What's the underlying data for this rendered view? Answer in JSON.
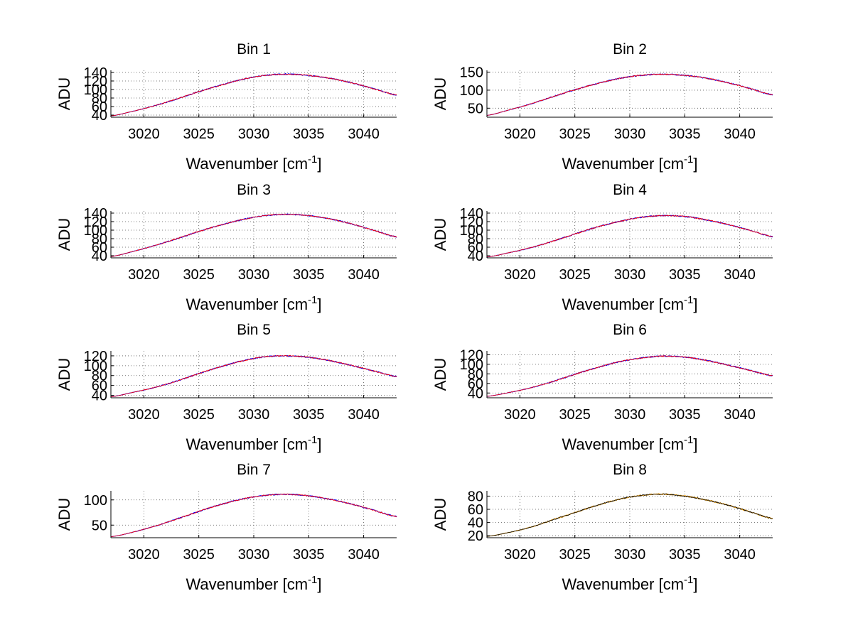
{
  "chart_data": [
    {
      "type": "line",
      "title": "Bin 1",
      "xlabel": "Wavenumber [cm",
      "xlabel_sup": "-1",
      "xlabel_end": "]",
      "ylabel": "ADU",
      "xlim": [
        3017,
        3043
      ],
      "ylim": [
        35,
        145
      ],
      "xticks": [
        3020,
        3025,
        3030,
        3035,
        3040
      ],
      "yticks": [
        40,
        60,
        80,
        100,
        120,
        140
      ],
      "grid": true,
      "series": [
        {
          "color": "#0000ff",
          "x": [
            3017,
            3019,
            3021,
            3023,
            3025,
            3027,
            3029,
            3031,
            3033,
            3035,
            3037,
            3039,
            3041,
            3043
          ],
          "values": [
            38,
            49,
            62,
            78,
            95,
            110,
            124,
            133,
            136,
            133,
            126,
            115,
            101,
            87
          ]
        },
        {
          "color": "#ff0000",
          "x": [
            3017,
            3019,
            3021,
            3023,
            3025,
            3027,
            3029,
            3031,
            3033,
            3035,
            3037,
            3039,
            3041,
            3043
          ],
          "values": [
            38,
            49,
            62,
            78,
            95,
            110,
            124,
            133,
            136,
            133,
            126,
            115,
            101,
            87
          ]
        }
      ]
    },
    {
      "type": "line",
      "title": "Bin 2",
      "xlabel": "Wavenumber [cm",
      "xlabel_sup": "-1",
      "xlabel_end": "]",
      "ylabel": "ADU",
      "xlim": [
        3017,
        3043
      ],
      "ylim": [
        25,
        155
      ],
      "xticks": [
        3020,
        3025,
        3030,
        3035,
        3040
      ],
      "yticks": [
        50,
        100,
        150
      ],
      "grid": true,
      "series": [
        {
          "color": "#0000ff",
          "x": [
            3017,
            3019,
            3021,
            3023,
            3025,
            3027,
            3029,
            3031,
            3033,
            3035,
            3037,
            3039,
            3041,
            3043
          ],
          "values": [
            30,
            45,
            62,
            82,
            101,
            118,
            132,
            141,
            144,
            141,
            133,
            120,
            104,
            87
          ]
        },
        {
          "color": "#ff0000",
          "x": [
            3017,
            3019,
            3021,
            3023,
            3025,
            3027,
            3029,
            3031,
            3033,
            3035,
            3037,
            3039,
            3041,
            3043
          ],
          "values": [
            30,
            45,
            62,
            82,
            101,
            118,
            132,
            141,
            144,
            141,
            133,
            120,
            104,
            87
          ]
        }
      ]
    },
    {
      "type": "line",
      "title": "Bin 3",
      "xlabel": "Wavenumber [cm",
      "xlabel_sup": "-1",
      "xlabel_end": "]",
      "ylabel": "ADU",
      "xlim": [
        3017,
        3043
      ],
      "ylim": [
        35,
        145
      ],
      "xticks": [
        3020,
        3025,
        3030,
        3035,
        3040
      ],
      "yticks": [
        40,
        60,
        80,
        100,
        120,
        140
      ],
      "grid": true,
      "series": [
        {
          "color": "#0000ff",
          "x": [
            3017,
            3019,
            3021,
            3023,
            3025,
            3027,
            3029,
            3031,
            3033,
            3035,
            3037,
            3039,
            3041,
            3043
          ],
          "values": [
            38,
            50,
            64,
            80,
            97,
            112,
            125,
            134,
            137,
            134,
            126,
            114,
            99,
            84
          ]
        },
        {
          "color": "#ff0000",
          "x": [
            3017,
            3019,
            3021,
            3023,
            3025,
            3027,
            3029,
            3031,
            3033,
            3035,
            3037,
            3039,
            3041,
            3043
          ],
          "values": [
            38,
            50,
            64,
            80,
            97,
            112,
            125,
            134,
            137,
            134,
            126,
            114,
            99,
            84
          ]
        }
      ]
    },
    {
      "type": "line",
      "title": "Bin 4",
      "xlabel": "Wavenumber [cm",
      "xlabel_sup": "-1",
      "xlabel_end": "]",
      "ylabel": "ADU",
      "xlim": [
        3017,
        3043
      ],
      "ylim": [
        35,
        145
      ],
      "xticks": [
        3020,
        3025,
        3030,
        3035,
        3040
      ],
      "yticks": [
        40,
        60,
        80,
        100,
        120,
        140
      ],
      "grid": true,
      "series": [
        {
          "color": "#0000ff",
          "x": [
            3017,
            3019,
            3021,
            3023,
            3025,
            3027,
            3029,
            3031,
            3033,
            3035,
            3037,
            3039,
            3041,
            3043
          ],
          "values": [
            37,
            47,
            59,
            74,
            91,
            107,
            120,
            130,
            134,
            132,
            124,
            113,
            99,
            85
          ]
        },
        {
          "color": "#ff0000",
          "x": [
            3017,
            3019,
            3021,
            3023,
            3025,
            3027,
            3029,
            3031,
            3033,
            3035,
            3037,
            3039,
            3041,
            3043
          ],
          "values": [
            37,
            47,
            59,
            74,
            91,
            107,
            120,
            130,
            134,
            132,
            124,
            113,
            99,
            85
          ]
        }
      ]
    },
    {
      "type": "line",
      "title": "Bin 5",
      "xlabel": "Wavenumber [cm",
      "xlabel_sup": "-1",
      "xlabel_end": "]",
      "ylabel": "ADU",
      "xlim": [
        3017,
        3043
      ],
      "ylim": [
        35,
        130
      ],
      "xticks": [
        3020,
        3025,
        3030,
        3035,
        3040
      ],
      "yticks": [
        40,
        60,
        80,
        100,
        120
      ],
      "grid": true,
      "series": [
        {
          "color": "#0000ff",
          "x": [
            3017,
            3019,
            3021,
            3023,
            3025,
            3027,
            3029,
            3031,
            3033,
            3035,
            3037,
            3039,
            3041,
            3043
          ],
          "values": [
            37,
            46,
            56,
            69,
            84,
            98,
            110,
            118,
            120,
            117,
            110,
            100,
            89,
            78
          ]
        },
        {
          "color": "#ff0000",
          "x": [
            3017,
            3019,
            3021,
            3023,
            3025,
            3027,
            3029,
            3031,
            3033,
            3035,
            3037,
            3039,
            3041,
            3043
          ],
          "values": [
            37,
            46,
            56,
            69,
            84,
            98,
            110,
            118,
            120,
            117,
            110,
            100,
            89,
            78
          ]
        }
      ]
    },
    {
      "type": "line",
      "title": "Bin 6",
      "xlabel": "Wavenumber [cm",
      "xlabel_sup": "-1",
      "xlabel_end": "]",
      "ylabel": "ADU",
      "xlim": [
        3017,
        3043
      ],
      "ylim": [
        30,
        128
      ],
      "xticks": [
        3020,
        3025,
        3030,
        3035,
        3040
      ],
      "yticks": [
        40,
        60,
        80,
        100,
        120
      ],
      "grid": true,
      "series": [
        {
          "color": "#0000ff",
          "x": [
            3017,
            3019,
            3021,
            3023,
            3025,
            3027,
            3029,
            3031,
            3033,
            3035,
            3037,
            3039,
            3041,
            3043
          ],
          "values": [
            33,
            41,
            51,
            64,
            79,
            93,
            105,
            113,
            117,
            115,
            108,
            98,
            87,
            76
          ]
        },
        {
          "color": "#ff0000",
          "x": [
            3017,
            3019,
            3021,
            3023,
            3025,
            3027,
            3029,
            3031,
            3033,
            3035,
            3037,
            3039,
            3041,
            3043
          ],
          "values": [
            33,
            41,
            51,
            64,
            79,
            93,
            105,
            113,
            117,
            115,
            108,
            98,
            87,
            76
          ]
        }
      ]
    },
    {
      "type": "line",
      "title": "Bin 7",
      "xlabel": "Wavenumber [cm",
      "xlabel_sup": "-1",
      "xlabel_end": "]",
      "ylabel": "ADU",
      "xlim": [
        3017,
        3043
      ],
      "ylim": [
        25,
        118
      ],
      "xticks": [
        3020,
        3025,
        3030,
        3035,
        3040
      ],
      "yticks": [
        50,
        100
      ],
      "grid": true,
      "series": [
        {
          "color": "#0000ff",
          "x": [
            3017,
            3019,
            3021,
            3023,
            3025,
            3027,
            3029,
            3031,
            3033,
            3035,
            3037,
            3039,
            3041,
            3043
          ],
          "values": [
            27,
            36,
            48,
            62,
            77,
            91,
            102,
            109,
            111,
            108,
            101,
            91,
            79,
            67
          ]
        },
        {
          "color": "#ff0000",
          "x": [
            3017,
            3019,
            3021,
            3023,
            3025,
            3027,
            3029,
            3031,
            3033,
            3035,
            3037,
            3039,
            3041,
            3043
          ],
          "values": [
            27,
            36,
            48,
            62,
            77,
            91,
            102,
            109,
            111,
            108,
            101,
            91,
            79,
            67
          ]
        }
      ]
    },
    {
      "type": "line",
      "title": "Bin 8",
      "xlabel": "Wavenumber [cm",
      "xlabel_sup": "-1",
      "xlabel_end": "]",
      "ylabel": "ADU",
      "xlim": [
        3017,
        3043
      ],
      "ylim": [
        17,
        88
      ],
      "xticks": [
        3020,
        3025,
        3030,
        3035,
        3040
      ],
      "yticks": [
        20,
        40,
        60,
        80
      ],
      "grid": true,
      "series": [
        {
          "color": "#ffa500",
          "x": [
            3017,
            3019,
            3021,
            3023,
            3025,
            3027,
            3029,
            3031,
            3033,
            3035,
            3037,
            3039,
            3041,
            3043
          ],
          "values": [
            19,
            25,
            33,
            44,
            55,
            66,
            75,
            81,
            83,
            80,
            74,
            66,
            56,
            46
          ]
        },
        {
          "color": "#000000",
          "x": [
            3017,
            3019,
            3021,
            3023,
            3025,
            3027,
            3029,
            3031,
            3033,
            3035,
            3037,
            3039,
            3041,
            3043
          ],
          "values": [
            19,
            25,
            33,
            44,
            55,
            66,
            75,
            81,
            83,
            80,
            74,
            66,
            56,
            46
          ]
        }
      ]
    }
  ]
}
